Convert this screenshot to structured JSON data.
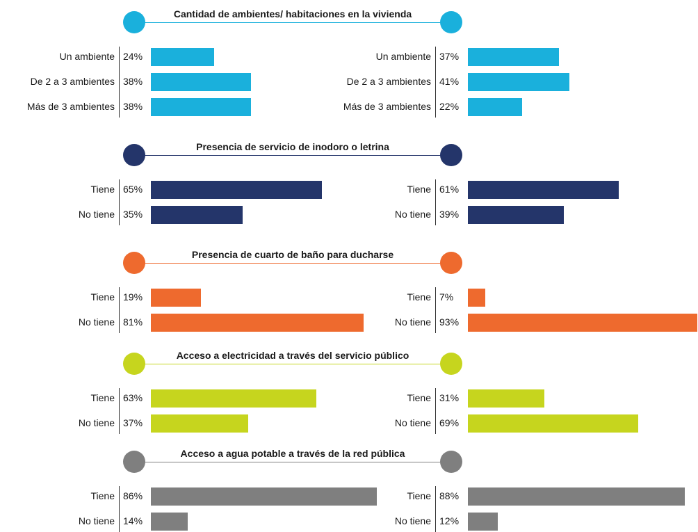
{
  "chart_data": {
    "type": "bar",
    "panels": [
      "left",
      "right"
    ],
    "sections": [
      {
        "title": "Cantidad de ambientes/ habitaciones en la vivienda",
        "color": "#1ab0dc",
        "categories": [
          "Un ambiente",
          "De 2 a 3 ambientes",
          "Más de 3 ambientes"
        ],
        "left": [
          24,
          38,
          38
        ],
        "right": [
          37,
          41,
          22
        ],
        "left_labels": [
          "24%",
          "38%",
          "38%"
        ],
        "right_labels": [
          "37%",
          "41%",
          "22%"
        ]
      },
      {
        "title": "Presencia de servicio de inodoro o letrina",
        "color": "#24356a",
        "categories": [
          "Tiene",
          "No tiene"
        ],
        "left": [
          65,
          35
        ],
        "right": [
          61,
          39
        ],
        "left_labels": [
          "65%",
          "35%"
        ],
        "right_labels": [
          "61%",
          "39%"
        ]
      },
      {
        "title": "Presencia de cuarto de baño para ducharse",
        "color": "#ee6a2e",
        "categories": [
          "Tiene",
          "No tiene"
        ],
        "left": [
          19,
          81
        ],
        "right": [
          7,
          93
        ],
        "left_labels": [
          "19%",
          "81%"
        ],
        "right_labels": [
          "7%",
          "93%"
        ]
      },
      {
        "title": "Acceso a electricidad a través del servicio público",
        "color": "#c6d51e",
        "categories": [
          "Tiene",
          "No tiene"
        ],
        "left": [
          63,
          37
        ],
        "right": [
          31,
          69
        ],
        "left_labels": [
          "63%",
          "37%"
        ],
        "right_labels": [
          "31%",
          "69%"
        ]
      },
      {
        "title": "Acceso a agua potable a través de la red pública",
        "color": "#7f7f7f",
        "categories": [
          "Tiene",
          "No tiene"
        ],
        "left": [
          86,
          14
        ],
        "right": [
          88,
          12
        ],
        "left_labels": [
          "86%",
          "14%"
        ],
        "right_labels": [
          "88%",
          "12%"
        ]
      }
    ],
    "xlim": [
      0,
      100
    ]
  }
}
